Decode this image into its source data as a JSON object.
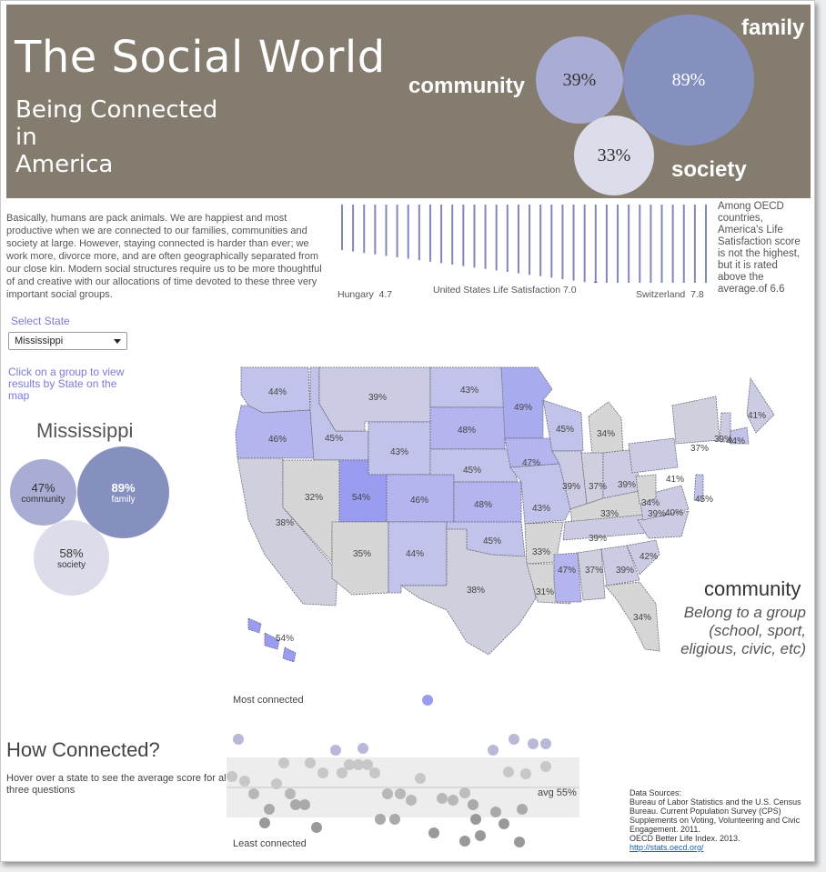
{
  "banner": {
    "title": "The Social World",
    "subtitle": "Being Connected\n in\nAmerica",
    "labels": {
      "community": "community",
      "family": "family",
      "society": "society"
    },
    "values": {
      "community": "39%",
      "family": "89%",
      "society": "33%"
    }
  },
  "intro": "Basically, humans are pack animals.  We are happiest and most productive when we are connected to our families, communities and society at large.  However, staying connected is harder than ever; we work more, divorce more, and are often geographically separated from our close kin.  Modern social structures require us to be more thoughtful of and creative with our allocations of time devoted to these three very important social groups.",
  "oecd": {
    "low_label": "Hungary",
    "low_value": "4.7",
    "us_label": "United States Life Satisfaction 7.0",
    "high_label": "Switzerland",
    "high_value": "7.8",
    "note": "Among OECD countries, America's Life Satisfaction score is not the highest, but it is rated above the average.of 6.6",
    "bars": 34,
    "us_index": 23
  },
  "controls": {
    "select_label": "Select State",
    "selected_state": "Mississippi",
    "hint": "Click on a group to view results by State on the map"
  },
  "state_panel": {
    "name": "Mississippi",
    "community_value": "47%",
    "community_label": "community",
    "family_value": "89%",
    "family_label": "family",
    "society_value": "58%",
    "society_label": "society"
  },
  "map": {
    "caption_title": "community",
    "caption_sub": "Belong to a group\n(school, sport,\neligious, civic, etc)",
    "states": [
      {
        "name": "WA",
        "value": "44%"
      },
      {
        "name": "OR",
        "value": "46%"
      },
      {
        "name": "CA",
        "value": "38%"
      },
      {
        "name": "ID",
        "value": "45%"
      },
      {
        "name": "NV",
        "value": "32%"
      },
      {
        "name": "MT",
        "value": "39%"
      },
      {
        "name": "WY",
        "value": "43%"
      },
      {
        "name": "UT",
        "value": "54%"
      },
      {
        "name": "AZ",
        "value": "35%"
      },
      {
        "name": "CO",
        "value": "46%"
      },
      {
        "name": "NM",
        "value": "44%"
      },
      {
        "name": "ND",
        "value": "43%"
      },
      {
        "name": "SD",
        "value": "48%"
      },
      {
        "name": "NE",
        "value": "45%"
      },
      {
        "name": "KS",
        "value": "48%"
      },
      {
        "name": "OK",
        "value": "45%"
      },
      {
        "name": "TX",
        "value": "38%"
      },
      {
        "name": "MN",
        "value": "49%"
      },
      {
        "name": "IA",
        "value": "47%"
      },
      {
        "name": "MO",
        "value": "43%"
      },
      {
        "name": "AR",
        "value": "33%"
      },
      {
        "name": "LA",
        "value": "31%"
      },
      {
        "name": "WI",
        "value": "45%"
      },
      {
        "name": "IL",
        "value": "39%"
      },
      {
        "name": "MI",
        "value": "34%"
      },
      {
        "name": "IN",
        "value": "37%"
      },
      {
        "name": "OH",
        "value": "39%"
      },
      {
        "name": "KY",
        "value": "33%"
      },
      {
        "name": "TN",
        "value": "39%"
      },
      {
        "name": "MS",
        "value": "47%"
      },
      {
        "name": "AL",
        "value": "37%"
      },
      {
        "name": "GA",
        "value": "39%"
      },
      {
        "name": "FL",
        "value": "34%"
      },
      {
        "name": "SC",
        "value": "42%"
      },
      {
        "name": "NC",
        "value": "39%"
      },
      {
        "name": "VA",
        "value": "40%"
      },
      {
        "name": "WV",
        "value": "34%"
      },
      {
        "name": "PA",
        "value": "41%"
      },
      {
        "name": "NY",
        "value": "37%"
      },
      {
        "name": "ME",
        "value": "41%"
      },
      {
        "name": "VT",
        "value": "39%"
      },
      {
        "name": "MA",
        "value": "44%"
      },
      {
        "name": "NJ",
        "value": "45%"
      },
      {
        "name": "HI",
        "value": "54%"
      }
    ]
  },
  "how": {
    "title": "How Connected?",
    "text": "Hover over a state to see the average score for all three questions",
    "most": "Most connected",
    "least": "Least connected",
    "avg": "avg 55%"
  },
  "sources": {
    "heading": "Data Sources:",
    "line1": "Bureau of Labor Statistics and the U.S. Census Bureau.  Current Population Survey (CPS) Supplements on Voting, Volunteering and Civic Engagement.  2011.",
    "line2": "OECD Better Life Index. 2013.",
    "link": "http://stats.oecd.org/"
  },
  "colors": {
    "banner_bg": "#857c70",
    "accent": "#7b79d6",
    "community": "#a9acd3",
    "family": "#8690bf",
    "society": "#dcdcea"
  }
}
